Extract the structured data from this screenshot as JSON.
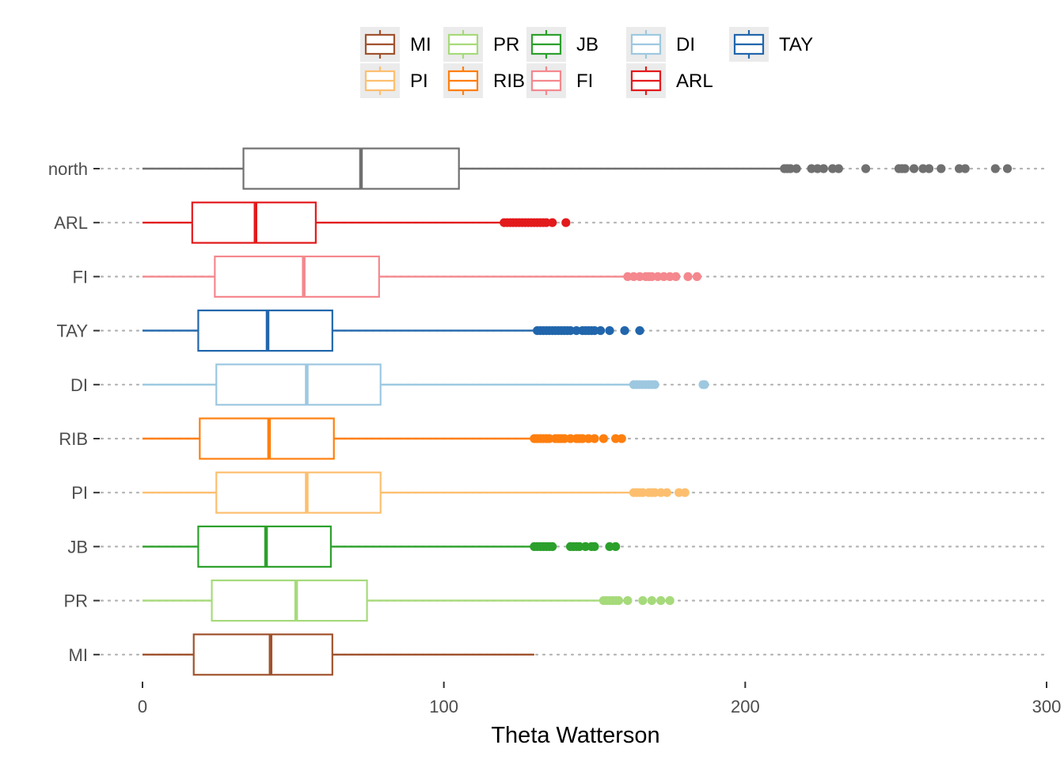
{
  "chart_data": {
    "type": "boxplot",
    "orientation": "horizontal",
    "xlabel": "Theta Watterson",
    "ylabel": "",
    "xlim": [
      0,
      300
    ],
    "xticks": [
      0,
      100,
      200,
      300
    ],
    "grid": "dotted horizontal lines at each category",
    "legend_position": "top",
    "legend": [
      {
        "name": "MI",
        "color": "#A0522D"
      },
      {
        "name": "PI",
        "color": "#FDBF6F"
      },
      {
        "name": "PR",
        "color": "#A6DA7A"
      },
      {
        "name": "RIB",
        "color": "#FF7F0E"
      },
      {
        "name": "JB",
        "color": "#2CA02C"
      },
      {
        "name": "FI",
        "color": "#F4888E"
      },
      {
        "name": "DI",
        "color": "#9DC8E0"
      },
      {
        "name": "ARL",
        "color": "#E31A1C"
      },
      {
        "name": "TAY",
        "color": "#2166AC"
      }
    ],
    "categories": [
      "north",
      "ARL",
      "FI",
      "TAY",
      "DI",
      "RIB",
      "PI",
      "JB",
      "PR",
      "MI"
    ],
    "series": [
      {
        "category": "north",
        "color": "#707070",
        "whisker_low": 0,
        "q1": 33.5,
        "median": 72.5,
        "q3": 105,
        "whisker_high": 212,
        "outliers": [
          213,
          214,
          215,
          217,
          222,
          224,
          226,
          229,
          231,
          240,
          251,
          252,
          253,
          256,
          259,
          261,
          265,
          271,
          273,
          283,
          287
        ]
      },
      {
        "category": "ARL",
        "color": "#E31A1C",
        "whisker_low": 0,
        "q1": 16.5,
        "median": 37.5,
        "q3": 57.5,
        "whisker_high": 119.5,
        "outliers": [
          120,
          121,
          122,
          123,
          124,
          125,
          126,
          127,
          128,
          129,
          130,
          131,
          132,
          133,
          134,
          136,
          140.5
        ]
      },
      {
        "category": "FI",
        "color": "#F4888E",
        "whisker_low": 0,
        "q1": 24,
        "median": 53.5,
        "q3": 78.5,
        "whisker_high": 160,
        "outliers": [
          161,
          163,
          165,
          167,
          168,
          169,
          171,
          173,
          175,
          177,
          181,
          184
        ]
      },
      {
        "category": "TAY",
        "color": "#2166AC",
        "whisker_low": 0,
        "q1": 18.5,
        "median": 41.5,
        "q3": 63,
        "whisker_high": 130,
        "outliers": [
          131,
          132,
          133,
          134,
          135,
          136,
          137,
          138,
          139,
          140,
          141,
          142,
          144,
          146,
          147,
          148,
          149,
          150,
          152,
          155,
          160,
          165
        ]
      },
      {
        "category": "DI",
        "color": "#9DC8E0",
        "whisker_low": 0,
        "q1": 24.5,
        "median": 54.5,
        "q3": 79,
        "whisker_high": 163,
        "outliers": [
          163,
          164,
          165,
          166,
          167,
          168,
          169,
          170,
          186,
          186.5
        ]
      },
      {
        "category": "RIB",
        "color": "#FF7F0E",
        "whisker_low": 0,
        "q1": 19,
        "median": 42,
        "q3": 63.5,
        "whisker_high": 129.5,
        "outliers": [
          130,
          131,
          132,
          133,
          134,
          135,
          137,
          138,
          139,
          140,
          142,
          144,
          145,
          146,
          148,
          150,
          153,
          157,
          159
        ]
      },
      {
        "category": "PI",
        "color": "#FDBF6F",
        "whisker_low": 0,
        "q1": 24.5,
        "median": 54.5,
        "q3": 79,
        "whisker_high": 162,
        "outliers": [
          163,
          164,
          165,
          166,
          168,
          169,
          170,
          172,
          174,
          178,
          180
        ]
      },
      {
        "category": "JB",
        "color": "#2CA02C",
        "whisker_low": 0,
        "q1": 18.5,
        "median": 41,
        "q3": 62.5,
        "whisker_high": 129,
        "outliers": [
          130,
          131,
          132,
          133,
          134,
          135,
          136,
          142,
          143,
          144,
          145,
          147,
          149,
          150,
          155,
          157
        ]
      },
      {
        "category": "PR",
        "color": "#A6DA7A",
        "whisker_low": 0,
        "q1": 23,
        "median": 51,
        "q3": 74.5,
        "whisker_high": 152,
        "outliers": [
          153,
          154,
          155,
          156,
          157,
          158,
          161,
          166,
          169,
          172,
          175
        ]
      },
      {
        "category": "MI",
        "color": "#A0522D",
        "whisker_low": 0,
        "q1": 17,
        "median": 42.5,
        "q3": 63,
        "whisker_high": 130,
        "outliers": []
      }
    ]
  }
}
